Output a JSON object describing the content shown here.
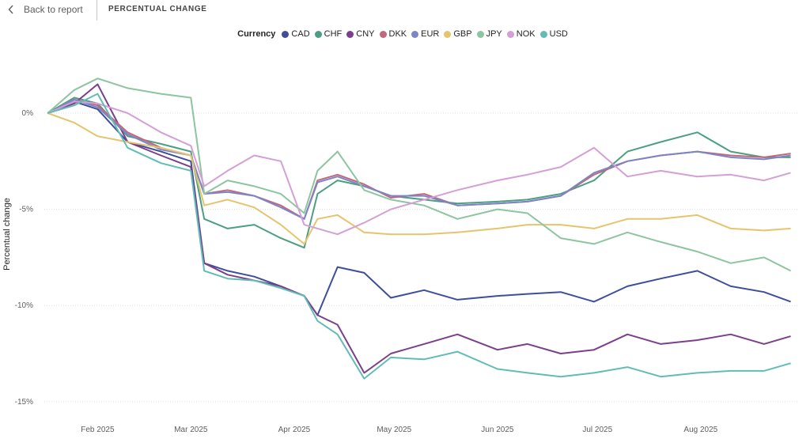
{
  "header": {
    "back_label": "Back to report",
    "page_title": "PERCENTUAL CHANGE",
    "back_icon": "chevron-left-icon"
  },
  "chart_data": {
    "type": "line",
    "title": "",
    "legend_title": "Currency",
    "legend_position": "top-center",
    "ylabel": "Percentual change",
    "xlabel": "",
    "grid": true,
    "ylim": [
      -15.5,
      3
    ],
    "xlim": [
      "2025-01-16",
      "2025-08-30"
    ],
    "y_ticks": [
      0,
      -5,
      -10,
      -15
    ],
    "y_tick_labels": [
      "0%",
      "-5%",
      "-10%",
      "-15%"
    ],
    "x_ticks": [
      "2025-02-01",
      "2025-03-01",
      "2025-04-01",
      "2025-05-01",
      "2025-06-01",
      "2025-07-01",
      "2025-08-01"
    ],
    "x_tick_labels": [
      "Feb 2025",
      "Mar 2025",
      "Apr 2025",
      "May 2025",
      "Jun 2025",
      "Jul 2025",
      "Aug 2025"
    ],
    "x": [
      "2025-01-17",
      "2025-01-25",
      "2025-02-01",
      "2025-02-10",
      "2025-02-20",
      "2025-03-01",
      "2025-03-05",
      "2025-03-12",
      "2025-03-20",
      "2025-03-28",
      "2025-04-04",
      "2025-04-08",
      "2025-04-14",
      "2025-04-22",
      "2025-04-30",
      "2025-05-10",
      "2025-05-20",
      "2025-06-01",
      "2025-06-10",
      "2025-06-20",
      "2025-06-30",
      "2025-07-10",
      "2025-07-20",
      "2025-07-31",
      "2025-08-10",
      "2025-08-20",
      "2025-08-28"
    ],
    "series": [
      {
        "name": "CAD",
        "color": "#3e4e9c",
        "values": [
          0,
          0.6,
          0.2,
          -1.5,
          -2.0,
          -2.5,
          -7.8,
          -8.2,
          -8.5,
          -9.0,
          -9.5,
          -10.5,
          -8.0,
          -8.3,
          -9.6,
          -9.2,
          -9.7,
          -9.5,
          -9.4,
          -9.3,
          -9.8,
          -9.0,
          -8.6,
          -8.2,
          -9.0,
          -9.3,
          -9.8
        ]
      },
      {
        "name": "CHF",
        "color": "#4c9f81",
        "values": [
          0,
          0.8,
          0.5,
          -1.2,
          -1.6,
          -2.0,
          -5.5,
          -6.0,
          -5.8,
          -6.5,
          -7.0,
          -4.2,
          -3.5,
          -3.8,
          -4.3,
          -4.5,
          -4.7,
          -4.6,
          -4.5,
          -4.2,
          -3.5,
          -2.0,
          -1.5,
          -1.0,
          -2.0,
          -2.3,
          -2.3
        ]
      },
      {
        "name": "CNY",
        "color": "#7b3f8c",
        "values": [
          0,
          0.5,
          1.5,
          -1.5,
          -2.2,
          -2.8,
          -7.8,
          -8.4,
          -8.7,
          -9.0,
          -9.5,
          -10.5,
          -11.0,
          -13.5,
          -12.5,
          -12.0,
          -11.5,
          -12.3,
          -12.0,
          -12.5,
          -12.3,
          -11.5,
          -12.0,
          -11.8,
          -11.5,
          -12.0,
          -11.6
        ]
      },
      {
        "name": "DKK",
        "color": "#c4677a",
        "values": [
          0,
          0.7,
          0.4,
          -1.0,
          -1.8,
          -2.2,
          -4.2,
          -4.0,
          -4.3,
          -4.8,
          -5.5,
          -3.5,
          -3.2,
          -3.7,
          -4.4,
          -4.2,
          -4.8,
          -4.7,
          -4.6,
          -4.3,
          -3.2,
          -2.5,
          -2.2,
          -2.0,
          -2.2,
          -2.3,
          -2.1
        ]
      },
      {
        "name": "EUR",
        "color": "#7b86c6",
        "values": [
          0,
          0.7,
          0.3,
          -1.1,
          -1.9,
          -2.2,
          -4.2,
          -4.1,
          -4.3,
          -4.9,
          -5.5,
          -3.6,
          -3.3,
          -3.8,
          -4.3,
          -4.3,
          -4.8,
          -4.7,
          -4.6,
          -4.3,
          -3.1,
          -2.5,
          -2.2,
          -2.0,
          -2.3,
          -2.4,
          -2.2
        ]
      },
      {
        "name": "GBP",
        "color": "#e6c46e",
        "values": [
          0,
          -0.5,
          -1.2,
          -1.5,
          -1.8,
          -2.2,
          -4.8,
          -4.5,
          -4.9,
          -5.8,
          -6.8,
          -5.5,
          -5.3,
          -6.2,
          -6.3,
          -6.3,
          -6.2,
          -6.0,
          -5.8,
          -5.8,
          -6.0,
          -5.5,
          -5.5,
          -5.3,
          -6.0,
          -6.1,
          -6.0
        ]
      },
      {
        "name": "JPY",
        "color": "#8cc59f",
        "values": [
          0,
          1.2,
          1.8,
          1.3,
          1.0,
          0.8,
          -4.2,
          -3.5,
          -3.8,
          -4.2,
          -5.2,
          -3.0,
          -2.0,
          -4.0,
          -4.5,
          -4.8,
          -5.5,
          -5.0,
          -5.2,
          -6.5,
          -6.8,
          -6.2,
          -6.7,
          -7.2,
          -7.8,
          -7.5,
          -8.2
        ]
      },
      {
        "name": "NOK",
        "color": "#d49fd6",
        "values": [
          0,
          0.6,
          0.5,
          0,
          -1.0,
          -1.7,
          -3.8,
          -3.0,
          -2.2,
          -2.5,
          -5.8,
          -6.0,
          -6.3,
          -5.7,
          -5.0,
          -4.5,
          -4.0,
          -3.5,
          -3.2,
          -2.8,
          -1.8,
          -3.3,
          -3.0,
          -3.3,
          -3.2,
          -3.5,
          -3.1
        ]
      },
      {
        "name": "USD",
        "color": "#62bcb5",
        "values": [
          0,
          0.4,
          1.0,
          -1.8,
          -2.6,
          -3.0,
          -8.2,
          -8.6,
          -8.7,
          -9.1,
          -9.5,
          -10.8,
          -11.5,
          -13.8,
          -12.7,
          -12.8,
          -12.4,
          -13.3,
          -13.5,
          -13.7,
          -13.5,
          -13.2,
          -13.7,
          -13.5,
          -13.4,
          -13.4,
          -13.0
        ]
      }
    ]
  }
}
